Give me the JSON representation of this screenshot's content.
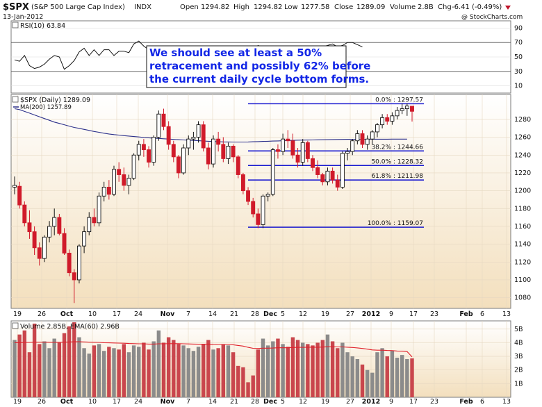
{
  "header": {
    "symbol": "$SPX",
    "name": "(S&P 500 Large Cap Index)",
    "exchange": "INDX",
    "date": "13-Jan-2012",
    "watermark": "@ StockCharts.com",
    "open_label": "Open",
    "open": "1294.82",
    "high_label": "High",
    "high": "1294.82",
    "low_label": "Low",
    "low": "1277.58",
    "close_label": "Close",
    "close": "1289.09",
    "volume_label": "Volume",
    "volume": "2.8B",
    "chg_label": "Chg",
    "chg": "-6.41 (-0.49%)"
  },
  "annotation": {
    "line1": "We should see at least a 50%",
    "line2": "retracement and possibly 62% before",
    "line3": "the current daily cycle bottom forms."
  },
  "colors": {
    "up": "#111111",
    "down": "#d01a2a",
    "ma200": "#2b2f8a",
    "fib": "#1a1ad0",
    "rsi": "#111111",
    "vol_up": "#8b8b8b",
    "vol_down": "#c9464d",
    "ema": "#e0202a",
    "panel_top": "#ffffff",
    "panel_bottom": "#f3dfbd"
  },
  "chart_data": [
    {
      "type": "line",
      "name": "RSI(10)",
      "label": "RSI(10) 63.84",
      "ylim": [
        0,
        100
      ],
      "y_ticks": [
        "90",
        "70",
        "50",
        "30",
        "10"
      ],
      "values": [
        46,
        44,
        52,
        38,
        34,
        36,
        40,
        47,
        52,
        50,
        33,
        38,
        45,
        57,
        62,
        52,
        60,
        52,
        60,
        60,
        52,
        58,
        58,
        56,
        68,
        72,
        65,
        60,
        58,
        64,
        62,
        58,
        55,
        62,
        64,
        62,
        58,
        54,
        50,
        56,
        46,
        40,
        34,
        55,
        60,
        58,
        62,
        64,
        60,
        66,
        62,
        58,
        60,
        62,
        56,
        52,
        50,
        56,
        58,
        54,
        58,
        60,
        64,
        66,
        68,
        64,
        66,
        70,
        70,
        67,
        63.84
      ]
    },
    {
      "type": "candlestick",
      "label": "$SPX (Daily) 1289.09",
      "ma_label": "MA(200) 1257.89",
      "ylim": [
        1068,
        1308
      ],
      "y_ticks": [
        "1280",
        "1260",
        "1240",
        "1220",
        "1200",
        "1180",
        "1160",
        "1140",
        "1120",
        "1100",
        "1080"
      ],
      "x_ticks": [
        "19",
        "26",
        "Oct",
        "10",
        "17",
        "24",
        "Nov",
        "7",
        "14",
        "21",
        "28",
        "Dec",
        "5",
        "12",
        "19",
        "27",
        "2012",
        "9",
        "17",
        "23",
        "Feb",
        "6",
        "13"
      ],
      "ohlc": [
        [
          1204,
          1216,
          1196,
          1206
        ],
        [
          1205,
          1210,
          1180,
          1184
        ],
        [
          1184,
          1188,
          1160,
          1164
        ],
        [
          1164,
          1178,
          1146,
          1154
        ],
        [
          1154,
          1160,
          1128,
          1136
        ],
        [
          1136,
          1142,
          1116,
          1124
        ],
        [
          1124,
          1150,
          1120,
          1148
        ],
        [
          1148,
          1166,
          1142,
          1160
        ],
        [
          1160,
          1180,
          1150,
          1170
        ],
        [
          1170,
          1174,
          1150,
          1152
        ],
        [
          1152,
          1158,
          1128,
          1130
        ],
        [
          1130,
          1134,
          1104,
          1108
        ],
        [
          1108,
          1112,
          1074,
          1100
        ],
        [
          1100,
          1140,
          1096,
          1138
        ],
        [
          1138,
          1160,
          1130,
          1154
        ],
        [
          1154,
          1176,
          1150,
          1170
        ],
        [
          1170,
          1180,
          1160,
          1164
        ],
        [
          1164,
          1198,
          1160,
          1194
        ],
        [
          1194,
          1210,
          1188,
          1204
        ],
        [
          1204,
          1212,
          1190,
          1196
        ],
        [
          1196,
          1228,
          1194,
          1224
        ],
        [
          1224,
          1232,
          1210,
          1218
        ],
        [
          1218,
          1226,
          1200,
          1206
        ],
        [
          1206,
          1218,
          1196,
          1214
        ],
        [
          1214,
          1242,
          1212,
          1240
        ],
        [
          1240,
          1256,
          1234,
          1252
        ],
        [
          1252,
          1258,
          1238,
          1246
        ],
        [
          1246,
          1250,
          1226,
          1232
        ],
        [
          1232,
          1262,
          1228,
          1260
        ],
        [
          1260,
          1290,
          1256,
          1286
        ],
        [
          1286,
          1292,
          1268,
          1272
        ],
        [
          1272,
          1278,
          1246,
          1252
        ],
        [
          1252,
          1256,
          1232,
          1238
        ],
        [
          1238,
          1240,
          1214,
          1220
        ],
        [
          1220,
          1252,
          1218,
          1248
        ],
        [
          1248,
          1262,
          1240,
          1258
        ],
        [
          1258,
          1266,
          1246,
          1260
        ],
        [
          1260,
          1278,
          1254,
          1274
        ],
        [
          1274,
          1278,
          1244,
          1248
        ],
        [
          1248,
          1254,
          1224,
          1230
        ],
        [
          1230,
          1262,
          1226,
          1258
        ],
        [
          1258,
          1266,
          1244,
          1252
        ],
        [
          1252,
          1260,
          1232,
          1236
        ],
        [
          1236,
          1254,
          1230,
          1250
        ],
        [
          1250,
          1252,
          1232,
          1238
        ],
        [
          1238,
          1240,
          1214,
          1218
        ],
        [
          1218,
          1220,
          1196,
          1200
        ],
        [
          1200,
          1204,
          1184,
          1188
        ],
        [
          1188,
          1192,
          1170,
          1174
        ],
        [
          1174,
          1180,
          1158,
          1162
        ],
        [
          1162,
          1196,
          1158,
          1194
        ],
        [
          1194,
          1198,
          1188,
          1196
        ],
        [
          1196,
          1248,
          1194,
          1246
        ],
        [
          1246,
          1252,
          1236,
          1244
        ],
        [
          1244,
          1264,
          1240,
          1258
        ],
        [
          1258,
          1268,
          1248,
          1256
        ],
        [
          1256,
          1264,
          1236,
          1240
        ],
        [
          1240,
          1248,
          1226,
          1232
        ],
        [
          1232,
          1258,
          1228,
          1254
        ],
        [
          1254,
          1256,
          1232,
          1236
        ],
        [
          1236,
          1240,
          1222,
          1226
        ],
        [
          1226,
          1234,
          1214,
          1218
        ],
        [
          1218,
          1220,
          1206,
          1210
        ],
        [
          1210,
          1226,
          1206,
          1222
        ],
        [
          1222,
          1226,
          1208,
          1212
        ],
        [
          1212,
          1218,
          1200,
          1204
        ],
        [
          1204,
          1244,
          1202,
          1242
        ],
        [
          1242,
          1248,
          1234,
          1244
        ],
        [
          1244,
          1258,
          1240,
          1256
        ],
        [
          1256,
          1268,
          1252,
          1264
        ],
        [
          1264,
          1268,
          1248,
          1252
        ],
        [
          1252,
          1262,
          1246,
          1258
        ],
        [
          1258,
          1268,
          1252,
          1266
        ],
        [
          1266,
          1276,
          1260,
          1274
        ],
        [
          1274,
          1286,
          1270,
          1282
        ],
        [
          1282,
          1286,
          1274,
          1278
        ],
        [
          1278,
          1288,
          1274,
          1284
        ],
        [
          1284,
          1294,
          1280,
          1290
        ],
        [
          1290,
          1298,
          1286,
          1292
        ],
        [
          1292,
          1298,
          1284,
          1295
        ],
        [
          1294.82,
          1294.82,
          1277.58,
          1289.09
        ]
      ],
      "ma200": [
        1292,
        1291,
        1289,
        1287,
        1285,
        1283,
        1281,
        1279,
        1277,
        1275.5,
        1274,
        1272.5,
        1271,
        1270,
        1268.8,
        1267.6,
        1266.5,
        1265.5,
        1264.5,
        1263.7,
        1263,
        1262.4,
        1261.8,
        1261.3,
        1260.8,
        1260.3,
        1259.8,
        1259.4,
        1259,
        1258.7,
        1258.3,
        1258,
        1257.6,
        1257.3,
        1257,
        1256.7,
        1256.4,
        1256.1,
        1255.8,
        1255.5,
        1255.2,
        1255,
        1254.8,
        1254.7,
        1254.6,
        1254.6,
        1254.6,
        1254.7,
        1254.9,
        1255.1,
        1255.3,
        1255.5,
        1255.7,
        1255.9,
        1256.1,
        1256.3,
        1256.5,
        1256.7,
        1256.8,
        1256.9,
        1257,
        1257.1,
        1257.2,
        1257.3,
        1257.4,
        1257.5,
        1257.6,
        1257.65,
        1257.7,
        1257.72,
        1257.74,
        1257.76,
        1257.78,
        1257.8,
        1257.82,
        1257.84,
        1257.86,
        1257.87,
        1257.88,
        1257.89
      ],
      "fib_levels": [
        {
          "label": "0.0% : 1297.57",
          "value": 1297.57
        },
        {
          "label": "38.2% : 1244.66",
          "value": 1244.66
        },
        {
          "label": "50.0% : 1228.32",
          "value": 1228.32
        },
        {
          "label": "61.8% : 1211.98",
          "value": 1211.98
        },
        {
          "label": "100.0% : 1159.07",
          "value": 1159.07
        }
      ]
    },
    {
      "type": "bar",
      "label": "Volume 2.85B, EMA(60) 2.96B",
      "ylim": [
        0,
        5.6
      ],
      "y_ticks": [
        "5B",
        "4B",
        "3B",
        "2B",
        "1B"
      ],
      "values": [
        4.2,
        4.6,
        4.9,
        3.3,
        5.4,
        3.9,
        4.1,
        3.6,
        4.3,
        4.0,
        4.7,
        5.2,
        5.5,
        4.4,
        3.6,
        3.2,
        3.8,
        3.9,
        3.4,
        3.7,
        3.6,
        3.5,
        3.9,
        3.3,
        3.8,
        3.7,
        4.0,
        3.5,
        4.1,
        4.9,
        4.0,
        4.4,
        4.2,
        3.9,
        3.8,
        3.6,
        3.4,
        3.7,
        3.9,
        4.2,
        3.5,
        3.6,
        3.9,
        3.8,
        3.3,
        2.3,
        2.2,
        1.1,
        1.6,
        3.5,
        4.3,
        3.8,
        4.1,
        4.3,
        3.9,
        3.7,
        4.4,
        4.2,
        4.0,
        3.9,
        3.8,
        4.0,
        4.2,
        4.6,
        4.1,
        3.6,
        4.0,
        3.3,
        3.0,
        2.8,
        2.4,
        2.0,
        1.8,
        3.3,
        3.6,
        3.0,
        3.4,
        2.9,
        3.1,
        2.8,
        2.85
      ],
      "ema": [
        4.0,
        4.0,
        4.02,
        4.02,
        4.04,
        4.04,
        4.04,
        4.03,
        4.03,
        4.03,
        4.04,
        4.05,
        4.07,
        4.07,
        4.06,
        4.04,
        4.03,
        4.02,
        4.0,
        3.99,
        3.98,
        3.97,
        3.96,
        3.94,
        3.93,
        3.92,
        3.92,
        3.9,
        3.9,
        3.92,
        3.92,
        3.93,
        3.93,
        3.93,
        3.92,
        3.91,
        3.9,
        3.89,
        3.89,
        3.9,
        3.88,
        3.87,
        3.87,
        3.87,
        3.85,
        3.8,
        3.75,
        3.66,
        3.59,
        3.58,
        3.6,
        3.6,
        3.61,
        3.63,
        3.63,
        3.63,
        3.65,
        3.66,
        3.66,
        3.67,
        3.67,
        3.67,
        3.68,
        3.7,
        3.7,
        3.69,
        3.69,
        3.67,
        3.65,
        3.62,
        3.58,
        3.53,
        3.47,
        3.45,
        3.45,
        3.43,
        3.42,
        3.39,
        3.38,
        3.35,
        2.96
      ]
    }
  ],
  "vol_x_ticks": [
    "19",
    "26",
    "Oct",
    "10",
    "17",
    "24",
    "Nov",
    "7",
    "14",
    "21",
    "28",
    "Dec",
    "5",
    "12",
    "19",
    "27",
    "2012",
    "9",
    "17",
    "23",
    "Feb",
    "6",
    "13"
  ]
}
